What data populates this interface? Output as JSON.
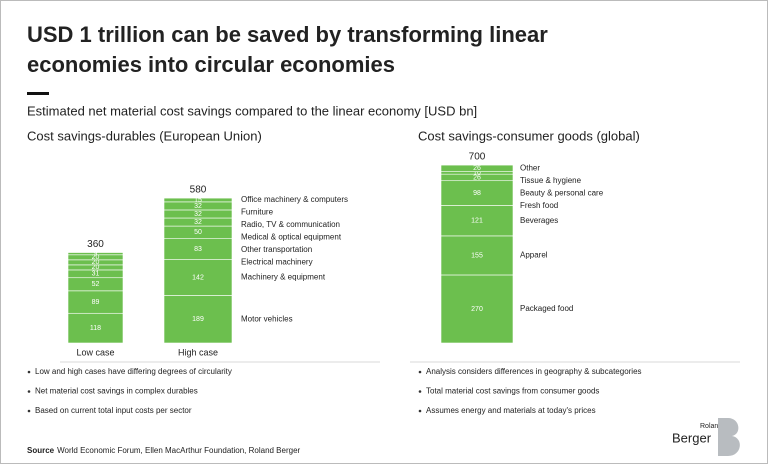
{
  "title_lines": [
    "USD 1 trillion can be saved by transforming linear",
    "economies into circular economies"
  ],
  "subtitle": "Estimated net material cost savings compared to the linear economy [USD bn]",
  "chart_data": [
    {
      "type": "stacked_bar",
      "title": "Cost savings-durables (European Union)",
      "categories": [
        "Low case",
        "High case"
      ],
      "totals": [
        360,
        580
      ],
      "series": [
        {
          "name": "Motor vehicles",
          "color": "#6cbf4e",
          "values": [
            118,
            189
          ]
        },
        {
          "name": "Machinery & equipment",
          "color": "#6cbf4e",
          "values": [
            89,
            142
          ]
        },
        {
          "name": "Electrical machinery",
          "color": "#6cbf4e",
          "values": [
            52,
            83
          ]
        },
        {
          "name": "Other transportation",
          "color": "#6cbf4e",
          "values": [
            31,
            50
          ]
        },
        {
          "name": "Medical & optical equipment",
          "color": "#6cbf4e",
          "values": [
            20,
            32
          ]
        },
        {
          "name": "Radio, TV & communication",
          "color": "#6cbf4e",
          "values": [
            20,
            32
          ]
        },
        {
          "name": "Furniture",
          "color": "#6cbf4e",
          "values": [
            20,
            32
          ]
        },
        {
          "name": "Office machinery & computers",
          "color": "#6cbf4e",
          "values": [
            9,
            15
          ]
        }
      ],
      "notes": [
        "Low and high cases have differing degrees of circularity",
        "Net material cost savings in complex durables",
        "Based on current total input costs per sector"
      ]
    },
    {
      "type": "stacked_bar",
      "title": "Cost savings-consumer goods (global)",
      "categories": [
        null
      ],
      "totals": [
        700
      ],
      "series": [
        {
          "name": "Packaged food",
          "color": "#6cbf4e",
          "values": [
            270
          ]
        },
        {
          "name": "Apparel",
          "color": "#6cbf4e",
          "values": [
            155
          ]
        },
        {
          "name": "Beverages",
          "color": "#6cbf4e",
          "values": [
            121
          ]
        },
        {
          "name": "Fresh food",
          "color": "#6cbf4e",
          "values": [
            98
          ]
        },
        {
          "name": "Beauty & personal care",
          "color": "#6cbf4e",
          "values": [
            26
          ]
        },
        {
          "name": "Tissue & hygiene",
          "color": "#6cbf4e",
          "values": [
            10
          ]
        },
        {
          "name": "Other",
          "color": "#6cbf4e",
          "values": [
            26
          ]
        }
      ],
      "notes": [
        "Analysis considers differences in geography & subcategories",
        "Total material cost savings from consumer goods",
        "Assumes energy and materials at today's prices"
      ]
    }
  ],
  "source_label": "Source",
  "source": "World Economic Forum, Ellen MacArthur Foundation, Roland Berger",
  "logo": [
    "Roland",
    "Berger"
  ]
}
